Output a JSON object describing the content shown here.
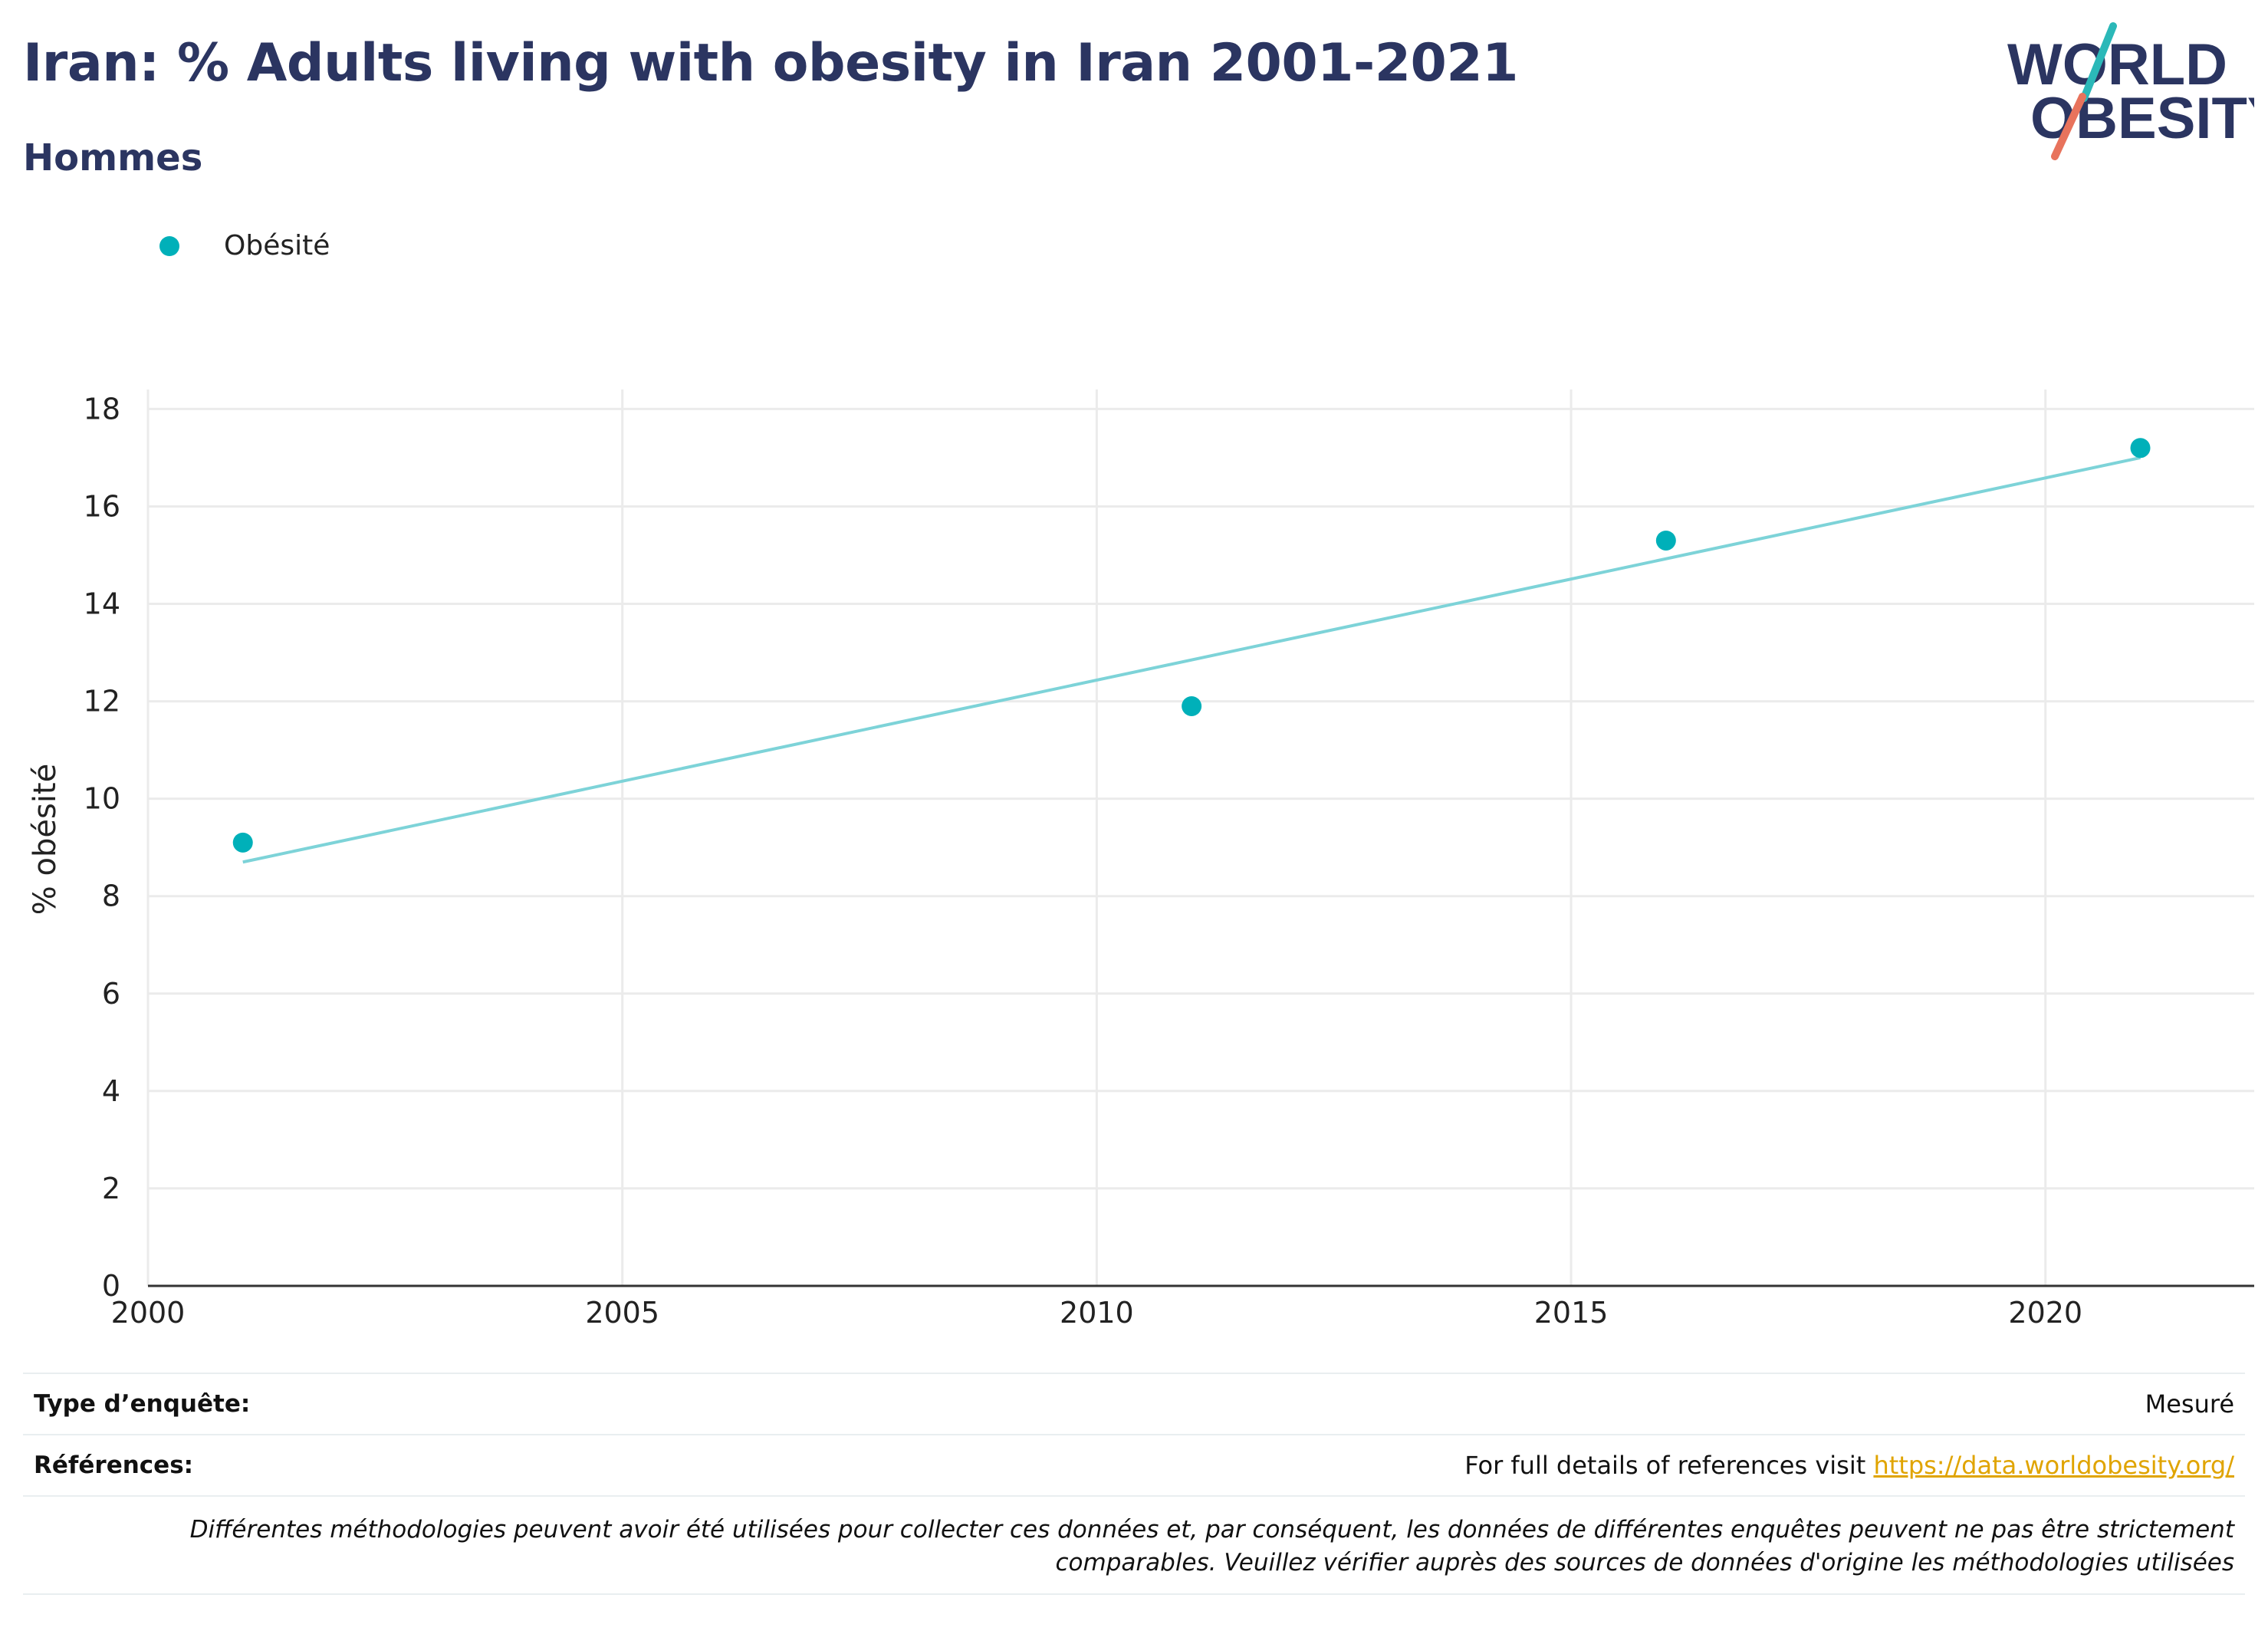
{
  "title": "Iran: % Adults living with obesity in Iran 2001-2021",
  "subtitle": "Hommes",
  "logo": {
    "line1": "WORLD",
    "line2": "OBESITY",
    "colors": {
      "text": "#2b3561",
      "teal": "#2bb8b8",
      "coral": "#e8735c"
    }
  },
  "legend": {
    "label": "Obésité",
    "color": "#00b0b9"
  },
  "chart_data": {
    "type": "scatter",
    "title": "Iran: % Adults living with obesity in Iran 2001-2021",
    "subtitle": "Hommes",
    "xlabel": "",
    "ylabel": "% obésité",
    "xlim": [
      2000,
      2022.2
    ],
    "ylim": [
      0,
      18.4
    ],
    "x_ticks": [
      2000,
      2005,
      2010,
      2015,
      2020
    ],
    "y_ticks": [
      0,
      2,
      4,
      6,
      8,
      10,
      12,
      14,
      16,
      18
    ],
    "grid": true,
    "legend_position": "top-left",
    "series": [
      {
        "name": "Obésité",
        "color": "#00b0b9",
        "x": [
          2001,
          2011,
          2016,
          2021
        ],
        "y": [
          9.1,
          11.9,
          15.3,
          17.2
        ]
      }
    ],
    "trendline": {
      "color": "#7dd3d8",
      "x": [
        2001,
        2021
      ],
      "y": [
        8.7,
        17.0
      ]
    }
  },
  "footer": {
    "survey_type_label": "Type d’enquête:",
    "survey_type_value": "Mesuré",
    "references_label": "Références:",
    "references_text": "For full details of references visit ",
    "references_link": "https://data.worldobesity.org/",
    "disclaimer_line1": "Différentes méthodologies peuvent avoir été utilisées pour collecter ces données et, par conséquent, les données de différentes enquêtes peuvent ne pas être strictement",
    "disclaimer_line2": "comparables. Veuillez vérifier auprès des sources de données d'origine les méthodologies utilisées"
  }
}
